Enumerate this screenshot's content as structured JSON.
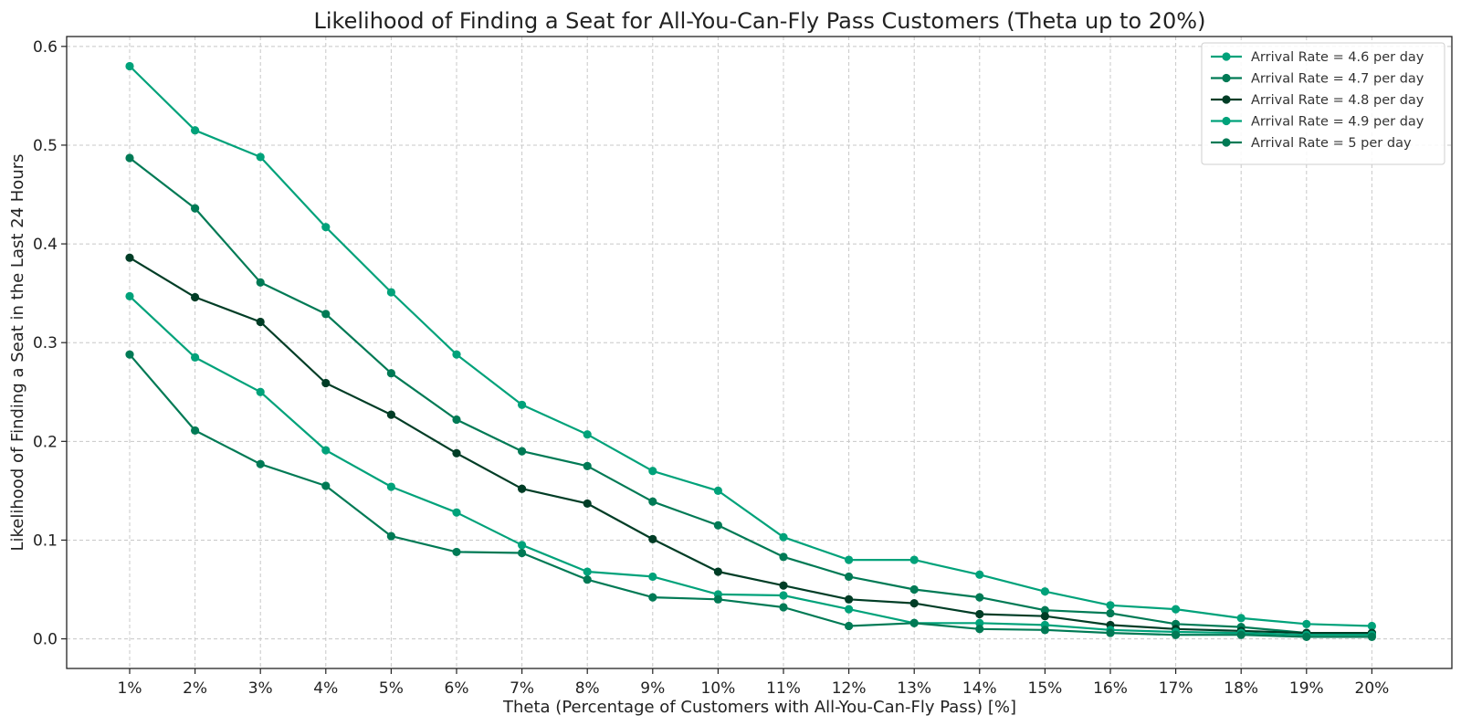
{
  "chart_data": {
    "type": "line",
    "title": "Likelihood of Finding a Seat for All-You-Can-Fly Pass Customers (Theta up to 20%)",
    "xlabel": "Theta (Percentage of Customers with All-You-Can-Fly Pass) [%]",
    "ylabel": "Likelihood of Finding a Seat in the Last 24 Hours",
    "categories": [
      "1%",
      "2%",
      "3%",
      "4%",
      "5%",
      "6%",
      "7%",
      "8%",
      "9%",
      "10%",
      "11%",
      "12%",
      "13%",
      "14%",
      "15%",
      "16%",
      "17%",
      "18%",
      "19%",
      "20%"
    ],
    "ylim": [
      -0.03,
      0.61
    ],
    "yticks": [
      0.0,
      0.1,
      0.2,
      0.3,
      0.4,
      0.5,
      0.6
    ],
    "ytick_labels": [
      "0.0",
      "0.1",
      "0.2",
      "0.3",
      "0.4",
      "0.5",
      "0.6"
    ],
    "grid": true,
    "legend_position": "top-right",
    "series": [
      {
        "name": "Arrival Rate = 4.6 per day",
        "color": "#00a27a",
        "values": [
          0.58,
          0.515,
          0.488,
          0.417,
          0.351,
          0.288,
          0.237,
          0.207,
          0.17,
          0.15,
          0.103,
          0.08,
          0.08,
          0.065,
          0.048,
          0.034,
          0.03,
          0.021,
          0.015,
          0.013
        ]
      },
      {
        "name": "Arrival Rate = 4.7 per day",
        "color": "#007a55",
        "values": [
          0.487,
          0.436,
          0.361,
          0.329,
          0.269,
          0.222,
          0.19,
          0.175,
          0.139,
          0.115,
          0.083,
          0.063,
          0.05,
          0.042,
          0.029,
          0.026,
          0.015,
          0.012,
          0.006,
          0.006
        ]
      },
      {
        "name": "Arrival Rate = 4.8 per day",
        "color": "#003d26",
        "values": [
          0.386,
          0.346,
          0.321,
          0.259,
          0.227,
          0.188,
          0.152,
          0.137,
          0.101,
          0.068,
          0.054,
          0.04,
          0.036,
          0.025,
          0.023,
          0.014,
          0.01,
          0.008,
          0.006,
          0.006
        ]
      },
      {
        "name": "Arrival Rate = 4.9 per day",
        "color": "#00a27a",
        "values": [
          0.347,
          0.285,
          0.25,
          0.191,
          0.154,
          0.128,
          0.095,
          0.068,
          0.063,
          0.045,
          0.044,
          0.03,
          0.016,
          0.016,
          0.014,
          0.009,
          0.007,
          0.006,
          0.004,
          0.004
        ]
      },
      {
        "name": "Arrival Rate = 5 per day",
        "color": "#007a55",
        "values": [
          0.288,
          0.211,
          0.177,
          0.155,
          0.104,
          0.088,
          0.087,
          0.06,
          0.042,
          0.04,
          0.032,
          0.013,
          0.016,
          0.01,
          0.009,
          0.006,
          0.004,
          0.004,
          0.002,
          0.002
        ]
      }
    ]
  }
}
